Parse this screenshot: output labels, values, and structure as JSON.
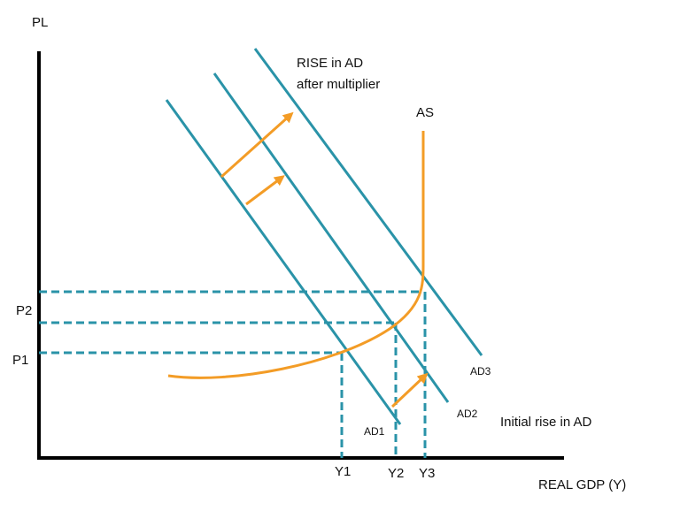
{
  "axes": {
    "y_label": "PL",
    "x_label": "REAL GDP (Y)"
  },
  "curves": {
    "as": "AS",
    "ad1": "AD1",
    "ad2": "AD2",
    "ad3": "AD3"
  },
  "price_levels": [
    "P1",
    "P2"
  ],
  "outputs": [
    "Y1",
    "Y2",
    "Y3"
  ],
  "annotations": {
    "multiplier": [
      "RISE in AD",
      "after multiplier"
    ],
    "initial": "Initial rise in AD"
  }
}
